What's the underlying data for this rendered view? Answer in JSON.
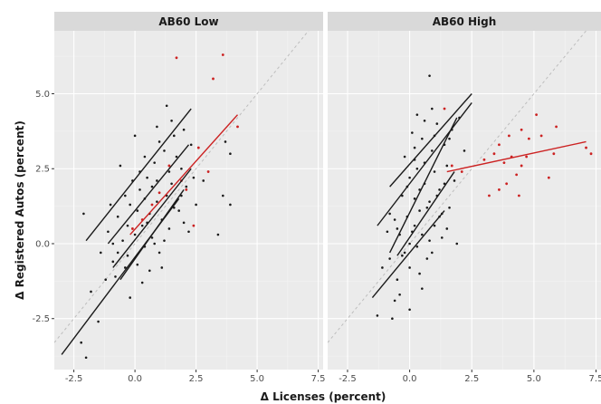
{
  "chart_data": {
    "type": "scatter",
    "title": "",
    "xlabel": "Δ Licenses (percent)",
    "ylabel": "Δ Registered Autos (percent)",
    "xlim": [
      -3.3,
      7.7
    ],
    "ylim": [
      -4.2,
      7.1
    ],
    "x_ticks": [
      -2.5,
      0.0,
      2.5,
      5.0,
      7.5
    ],
    "x_tick_labels": [
      "-2.5",
      "0.0",
      "2.5",
      "5.0",
      "7.5"
    ],
    "y_ticks": [
      -2.5,
      0.0,
      2.5,
      5.0
    ],
    "y_tick_labels": [
      "-2.5",
      "0.0",
      "2.5",
      "5.0"
    ],
    "grid": true,
    "reference_line": {
      "style": "dashed",
      "slope": 1,
      "intercept": 0
    },
    "colors": {
      "black_series": "#1a1a1a",
      "red_series": "#cc2222",
      "reference": "#bdbdbd"
    },
    "panels": [
      {
        "label": "AB60 Low",
        "points_black": [
          [
            -1.4,
            -0.3
          ],
          [
            -1.1,
            0.4
          ],
          [
            -0.9,
            -0.6
          ],
          [
            -0.7,
            0.9
          ],
          [
            -0.5,
            0.1
          ],
          [
            -0.3,
            -0.4
          ],
          [
            -0.2,
            1.3
          ],
          [
            0.0,
            0.3
          ],
          [
            0.1,
            -0.7
          ],
          [
            0.2,
            1.8
          ],
          [
            0.3,
            0.6
          ],
          [
            0.4,
            -0.1
          ],
          [
            0.5,
            2.2
          ],
          [
            0.6,
            1.0
          ],
          [
            0.7,
            0.2
          ],
          [
            0.8,
            2.7
          ],
          [
            0.9,
            1.4
          ],
          [
            1.0,
            -0.3
          ],
          [
            1.1,
            0.8
          ],
          [
            1.2,
            3.1
          ],
          [
            1.3,
            1.6
          ],
          [
            1.4,
            0.5
          ],
          [
            1.5,
            2.0
          ],
          [
            1.6,
            3.6
          ],
          [
            1.8,
            1.1
          ],
          [
            1.9,
            2.5
          ],
          [
            2.0,
            0.7
          ],
          [
            2.1,
            1.9
          ],
          [
            2.3,
            3.3
          ],
          [
            2.5,
            1.3
          ],
          [
            -0.8,
            -1.1
          ],
          [
            -0.4,
            1.6
          ],
          [
            0.2,
            2.4
          ],
          [
            0.6,
            -0.9
          ],
          [
            1.0,
            3.4
          ],
          [
            1.5,
            4.1
          ],
          [
            -2.1,
            1.0
          ],
          [
            -1.8,
            -1.6
          ],
          [
            -1.5,
            -2.6
          ],
          [
            -2.2,
            -3.3
          ],
          [
            -2.0,
            -3.8
          ],
          [
            -1.2,
            -1.2
          ],
          [
            -0.6,
            2.6
          ],
          [
            0.0,
            3.6
          ],
          [
            0.4,
            2.9
          ],
          [
            0.9,
            3.9
          ],
          [
            1.3,
            4.6
          ],
          [
            1.7,
            2.9
          ],
          [
            2.4,
            2.2
          ],
          [
            2.8,
            2.1
          ],
          [
            3.4,
            0.3
          ],
          [
            3.6,
            1.6
          ],
          [
            3.9,
            1.3
          ],
          [
            3.7,
            3.4
          ],
          [
            3.9,
            3.0
          ],
          [
            1.1,
            -0.8
          ],
          [
            0.3,
            -1.3
          ],
          [
            -0.2,
            -1.8
          ],
          [
            -0.9,
            0.0
          ],
          [
            -0.1,
            2.1
          ],
          [
            0.7,
            1.9
          ],
          [
            1.4,
            2.4
          ],
          [
            1.9,
            1.6
          ],
          [
            2.2,
            0.4
          ],
          [
            0.5,
            0.7
          ],
          [
            -0.4,
            -0.8
          ],
          [
            0.8,
            0.0
          ],
          [
            1.6,
            1.2
          ],
          [
            -1.0,
            1.3
          ],
          [
            -0.7,
            -0.3
          ],
          [
            0.1,
            1.1
          ],
          [
            0.9,
            2.1
          ],
          [
            1.2,
            0.1
          ],
          [
            2.0,
            3.8
          ],
          [
            -0.3,
            0.6
          ],
          [
            0.4,
            1.5
          ]
        ],
        "points_red": [
          [
            1.7,
            6.2
          ],
          [
            3.6,
            6.3
          ],
          [
            3.2,
            5.5
          ],
          [
            4.2,
            3.9
          ],
          [
            2.6,
            3.2
          ],
          [
            2.1,
            1.8
          ],
          [
            1.4,
            2.6
          ],
          [
            1.0,
            1.7
          ],
          [
            0.3,
            0.8
          ],
          [
            -0.1,
            0.5
          ],
          [
            1.9,
            2.1
          ],
          [
            2.4,
            0.6
          ],
          [
            0.7,
            1.3
          ],
          [
            3.0,
            2.4
          ]
        ],
        "fit_lines_black": [
          [
            [
              -2.0,
              0.1
            ],
            [
              2.3,
              4.5
            ]
          ],
          [
            [
              -1.1,
              0.0
            ],
            [
              2.2,
              3.3
            ]
          ],
          [
            [
              -0.9,
              -0.8
            ],
            [
              2.3,
              2.5
            ]
          ],
          [
            [
              -0.6,
              -1.2
            ],
            [
              2.0,
              1.8
            ]
          ],
          [
            [
              -3.0,
              -3.7
            ],
            [
              1.8,
              1.5
            ]
          ]
        ],
        "fit_lines_red": [
          [
            [
              -0.2,
              0.3
            ],
            [
              4.2,
              4.3
            ]
          ]
        ]
      },
      {
        "label": "AB60 High",
        "points_black": [
          [
            -0.8,
            -0.5
          ],
          [
            -0.6,
            0.8
          ],
          [
            -0.5,
            -1.2
          ],
          [
            -0.4,
            0.3
          ],
          [
            -0.3,
            1.6
          ],
          [
            -0.2,
            -0.3
          ],
          [
            -0.1,
            0.9
          ],
          [
            0.0,
            2.2
          ],
          [
            0.0,
            -0.8
          ],
          [
            0.1,
            0.4
          ],
          [
            0.2,
            1.5
          ],
          [
            0.2,
            2.8
          ],
          [
            0.3,
            -0.1
          ],
          [
            0.4,
            1.1
          ],
          [
            0.5,
            3.5
          ],
          [
            0.5,
            0.3
          ],
          [
            0.6,
            2.0
          ],
          [
            0.7,
            -0.5
          ],
          [
            0.8,
            1.4
          ],
          [
            0.9,
            3.1
          ],
          [
            1.0,
            0.6
          ],
          [
            1.0,
            2.4
          ],
          [
            1.1,
            4.0
          ],
          [
            1.2,
            1.8
          ],
          [
            1.3,
            0.2
          ],
          [
            1.4,
            3.3
          ],
          [
            1.5,
            2.6
          ],
          [
            1.6,
            1.2
          ],
          [
            1.7,
            3.8
          ],
          [
            1.8,
            2.1
          ],
          [
            0.8,
            5.6
          ],
          [
            -0.7,
            -2.5
          ],
          [
            -0.4,
            -1.7
          ],
          [
            0.0,
            -2.2
          ],
          [
            0.4,
            -1.0
          ],
          [
            -1.3,
            -2.4
          ],
          [
            -1.1,
            -0.8
          ],
          [
            -0.9,
            0.4
          ],
          [
            0.3,
            4.3
          ],
          [
            0.6,
            4.1
          ],
          [
            0.9,
            -0.3
          ],
          [
            1.2,
            0.9
          ],
          [
            -0.2,
            2.9
          ],
          [
            0.1,
            3.7
          ],
          [
            1.6,
            3.5
          ],
          [
            2.0,
            4.2
          ],
          [
            -0.6,
            -1.9
          ],
          [
            -0.3,
            -0.4
          ],
          [
            0.2,
            0.6
          ],
          [
            0.7,
            1.2
          ],
          [
            1.1,
            1.6
          ],
          [
            1.4,
            2.0
          ],
          [
            1.9,
            0.0
          ],
          [
            2.2,
            3.1
          ],
          [
            0.5,
            -1.5
          ],
          [
            0.8,
            0.1
          ],
          [
            -0.1,
            1.9
          ],
          [
            0.3,
            2.5
          ],
          [
            1.0,
            3.6
          ],
          [
            1.3,
            1.0
          ],
          [
            -0.5,
            0.5
          ],
          [
            0.6,
            2.7
          ],
          [
            0.9,
            4.5
          ],
          [
            1.5,
            0.5
          ],
          [
            0.0,
            0.0
          ],
          [
            0.4,
            1.8
          ],
          [
            -0.8,
            1.0
          ],
          [
            0.2,
            3.2
          ]
        ],
        "points_red": [
          [
            1.4,
            4.5
          ],
          [
            3.0,
            2.8
          ],
          [
            3.6,
            3.3
          ],
          [
            3.4,
            3.0
          ],
          [
            3.8,
            2.7
          ],
          [
            4.1,
            2.9
          ],
          [
            4.3,
            2.3
          ],
          [
            4.5,
            2.6
          ],
          [
            3.6,
            1.8
          ],
          [
            3.2,
            1.6
          ],
          [
            4.0,
            3.6
          ],
          [
            4.5,
            3.8
          ],
          [
            4.8,
            3.5
          ],
          [
            5.1,
            4.3
          ],
          [
            5.9,
            3.9
          ],
          [
            5.6,
            2.2
          ],
          [
            5.8,
            3.0
          ],
          [
            7.1,
            3.2
          ],
          [
            7.3,
            3.0
          ],
          [
            3.9,
            2.0
          ],
          [
            4.4,
            1.6
          ],
          [
            2.1,
            2.4
          ],
          [
            1.7,
            2.6
          ],
          [
            5.3,
            3.6
          ],
          [
            4.7,
            2.9
          ]
        ],
        "fit_lines_black": [
          [
            [
              -1.3,
              0.6
            ],
            [
              2.5,
              4.7
            ]
          ],
          [
            [
              -0.8,
              1.9
            ],
            [
              2.5,
              5.0
            ]
          ],
          [
            [
              -0.8,
              -0.3
            ],
            [
              1.9,
              4.2
            ]
          ],
          [
            [
              -0.5,
              -0.4
            ],
            [
              1.8,
              2.4
            ]
          ],
          [
            [
              -1.5,
              -1.8
            ],
            [
              1.4,
              1.1
            ]
          ]
        ],
        "fit_lines_red": [
          [
            [
              1.5,
              2.4
            ],
            [
              7.1,
              3.4
            ]
          ]
        ]
      }
    ]
  }
}
